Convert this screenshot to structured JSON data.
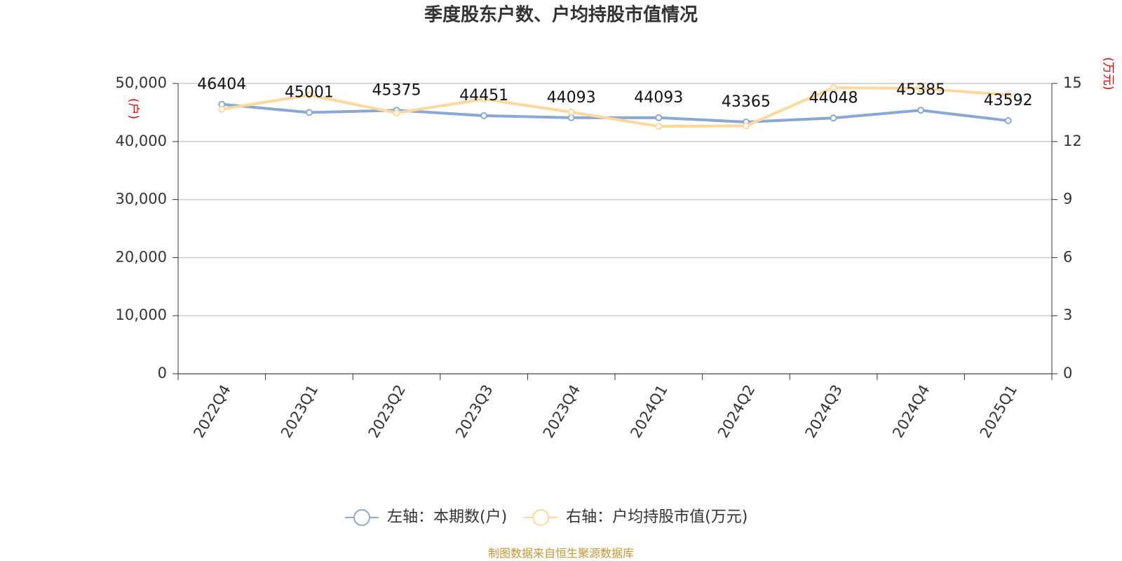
{
  "chart_data": {
    "type": "line",
    "title": "季度股东户数、户均持股市值情况",
    "categories": [
      "2022Q4",
      "2023Q1",
      "2023Q2",
      "2023Q3",
      "2023Q4",
      "2024Q1",
      "2024Q2",
      "2024Q3",
      "2024Q4",
      "2025Q1"
    ],
    "series": [
      {
        "name": "左轴：本期数(户)",
        "color": "#88a8d8",
        "values": [
          46404,
          45001,
          45375,
          44451,
          44093,
          44093,
          43365,
          44048,
          45385,
          43592
        ],
        "show_labels": true
      },
      {
        "name": "右轴：户均持股市值(万元)",
        "color": "#fdd999",
        "axis": "y2",
        "values": [
          13.67,
          14.4,
          13.48,
          14.19,
          13.52,
          12.78,
          12.81,
          14.78,
          14.74,
          14.41
        ],
        "show_labels": false
      }
    ],
    "ylim": [
      0,
      50000
    ],
    "yticks": [
      0,
      {
        "value": 10000,
        "label": "10,000"
      },
      {
        "value": 20000,
        "label": "20,000"
      },
      {
        "value": 30000,
        "label": "30,000"
      },
      {
        "value": 40000,
        "label": "40,000"
      },
      {
        "value": 50000,
        "label": "50,000"
      }
    ],
    "y2lim": [
      0,
      15
    ],
    "y2ticks": [
      0,
      3,
      6,
      9,
      12,
      15
    ],
    "y_label": "(户)",
    "y2_label": "(万元)",
    "grid": true,
    "source": "制图数据来自恒生聚源数据库"
  }
}
